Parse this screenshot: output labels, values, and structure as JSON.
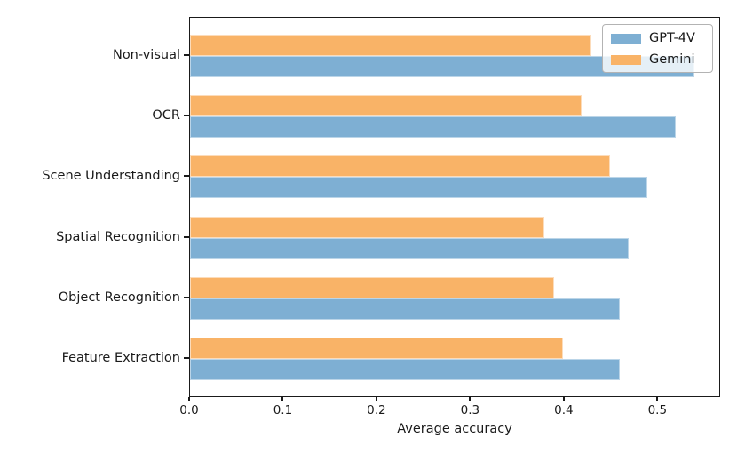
{
  "chart_data": {
    "type": "bar",
    "orientation": "horizontal",
    "title": "",
    "xlabel": "Average accuracy",
    "ylabel": "",
    "categories": [
      "Non-visual",
      "OCR",
      "Scene Understanding",
      "Spatial Recognition",
      "Object Recognition",
      "Feature Extraction"
    ],
    "series": [
      {
        "name": "GPT-4V",
        "color": "#7EAFD3",
        "edge_color": "#BBD5E8",
        "values": [
          0.54,
          0.52,
          0.49,
          0.47,
          0.46,
          0.46
        ]
      },
      {
        "name": "Gemini",
        "color": "#F9B367",
        "edge_color": "#FCDCBB",
        "values": [
          0.43,
          0.42,
          0.45,
          0.38,
          0.39,
          0.4
        ]
      }
    ],
    "xlim": [
      0,
      0.567
    ],
    "xticks": [
      {
        "value": 0.0,
        "label": "0.0"
      },
      {
        "value": 0.1,
        "label": "0.1"
      },
      {
        "value": 0.2,
        "label": "0.2"
      },
      {
        "value": 0.3,
        "label": "0.3"
      },
      {
        "value": 0.4,
        "label": "0.4"
      },
      {
        "value": 0.5,
        "label": "0.5"
      }
    ],
    "legend_position": "upper right",
    "grid": false,
    "axis_color": "#1a1a1a"
  }
}
